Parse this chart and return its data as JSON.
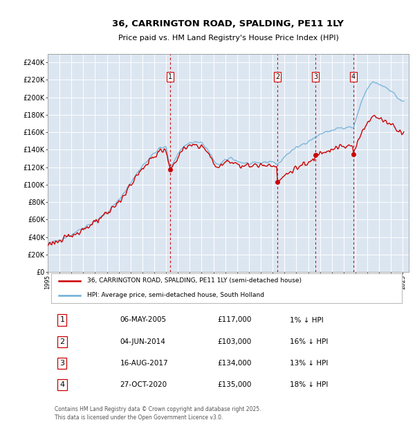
{
  "title": "36, CARRINGTON ROAD, SPALDING, PE11 1LY",
  "subtitle": "Price paid vs. HM Land Registry's House Price Index (HPI)",
  "ylabel_ticks": [
    "£0",
    "£20K",
    "£40K",
    "£60K",
    "£80K",
    "£100K",
    "£120K",
    "£140K",
    "£160K",
    "£180K",
    "£200K",
    "£220K",
    "£240K"
  ],
  "ytick_vals": [
    0,
    20000,
    40000,
    60000,
    80000,
    100000,
    120000,
    140000,
    160000,
    180000,
    200000,
    220000,
    240000
  ],
  "ylim": [
    0,
    250000
  ],
  "xlim_start": 1995.0,
  "xlim_end": 2025.5,
  "background_color": "#dce6f1",
  "plot_bg_color": "#dce6f1",
  "line_color_red": "#cc0000",
  "line_color_blue": "#6baed6",
  "grid_color": "#ffffff",
  "sale_markers": [
    {
      "year": 2005.35,
      "price": 117000,
      "label": "1"
    },
    {
      "year": 2014.42,
      "price": 103000,
      "label": "2"
    },
    {
      "year": 2017.62,
      "price": 134000,
      "label": "3"
    },
    {
      "year": 2020.83,
      "price": 135000,
      "label": "4"
    }
  ],
  "vline_color": "#cc0000",
  "legend_entries": [
    "36, CARRINGTON ROAD, SPALDING, PE11 1LY (semi-detached house)",
    "HPI: Average price, semi-detached house, South Holland"
  ],
  "table_rows": [
    {
      "num": "1",
      "date": "06-MAY-2005",
      "price": "£117,000",
      "hpi": "1% ↓ HPI"
    },
    {
      "num": "2",
      "date": "04-JUN-2014",
      "price": "£103,000",
      "hpi": "16% ↓ HPI"
    },
    {
      "num": "3",
      "date": "16-AUG-2017",
      "price": "£134,000",
      "hpi": "13% ↓ HPI"
    },
    {
      "num": "4",
      "date": "27-OCT-2020",
      "price": "£135,000",
      "hpi": "18% ↓ HPI"
    }
  ],
  "footer": "Contains HM Land Registry data © Crown copyright and database right 2025.\nThis data is licensed under the Open Government Licence v3.0."
}
